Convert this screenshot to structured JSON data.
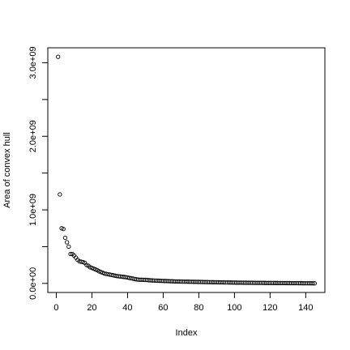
{
  "chart_data": {
    "type": "scatter",
    "xlabel": "Index",
    "ylabel": "Area of convex hull",
    "xlim": [
      -4.76,
      150.76
    ],
    "ylim": [
      -123200000,
      3203200000
    ],
    "xticks": [
      0,
      20,
      40,
      60,
      80,
      100,
      120,
      140
    ],
    "xtick_labels": [
      "0",
      "20",
      "40",
      "60",
      "80",
      "100",
      "120",
      "140"
    ],
    "yticks": [
      0,
      1000000000,
      2000000000,
      3000000000
    ],
    "ytick_labels": [
      "0.0e+00",
      "1.0e+09",
      "2.0e+09",
      "3.0e+09"
    ],
    "grid": false,
    "marker": "open-circle",
    "x": [
      1,
      2,
      3,
      4,
      5,
      6,
      7,
      8,
      9,
      10,
      11,
      12,
      13,
      14,
      15,
      16,
      17,
      18,
      19,
      20,
      21,
      22,
      23,
      24,
      25,
      26,
      27,
      28,
      29,
      30,
      31,
      32,
      33,
      34,
      35,
      36,
      37,
      38,
      39,
      40,
      41,
      42,
      43,
      44,
      45,
      46,
      47,
      48,
      49,
      50,
      51,
      52,
      53,
      54,
      55,
      56,
      57,
      58,
      59,
      60,
      61,
      62,
      63,
      64,
      65,
      66,
      67,
      68,
      69,
      70,
      71,
      72,
      73,
      74,
      75,
      76,
      77,
      78,
      79,
      80,
      81,
      82,
      83,
      84,
      85,
      86,
      87,
      88,
      89,
      90,
      91,
      92,
      93,
      94,
      95,
      96,
      97,
      98,
      99,
      100,
      101,
      102,
      103,
      104,
      105,
      106,
      107,
      108,
      109,
      110,
      111,
      112,
      113,
      114,
      115,
      116,
      117,
      118,
      119,
      120,
      121,
      122,
      123,
      124,
      125,
      126,
      127,
      128,
      129,
      130,
      131,
      132,
      133,
      134,
      135,
      136,
      137,
      138,
      139,
      140,
      141,
      142,
      143,
      144,
      145
    ],
    "y": [
      3080000000,
      1210000000,
      750000000,
      740000000,
      620000000,
      560000000,
      500000000,
      400000000,
      400000000,
      380000000,
      350000000,
      320000000,
      300000000,
      295000000,
      290000000,
      280000000,
      250000000,
      240000000,
      220000000,
      210000000,
      200000000,
      190000000,
      180000000,
      165000000,
      155000000,
      145000000,
      135000000,
      130000000,
      125000000,
      120000000,
      115000000,
      110000000,
      105000000,
      100000000,
      97000000,
      94000000,
      91000000,
      88000000,
      85000000,
      80000000,
      75000000,
      70000000,
      65000000,
      60000000,
      55000000,
      52000000,
      50000000,
      50000000,
      49000000,
      48000000,
      46000000,
      44000000,
      42000000,
      40000000,
      39000000,
      38000000,
      37000000,
      36000000,
      35000000,
      34000000,
      33000000,
      32000000,
      31000000,
      30000000,
      29000000,
      28000000,
      27000000,
      26500000,
      26000000,
      25500000,
      25000000,
      24500000,
      24000000,
      23500000,
      23000000,
      22500000,
      22000000,
      21500000,
      21000000,
      20500000,
      20000000,
      19500000,
      19000000,
      18500000,
      18000000,
      17500000,
      17000000,
      16500000,
      16000000,
      15500000,
      15000000,
      14600000,
      14200000,
      13800000,
      13400000,
      13000000,
      12600000,
      12200000,
      11800000,
      11400000,
      11000000,
      10700000,
      10400000,
      10100000,
      9800000,
      9500000,
      9200000,
      8900000,
      8600000,
      8300000,
      8000000,
      7800000,
      7600000,
      7400000,
      7200000,
      7000000,
      6800000,
      6600000,
      6400000,
      6200000,
      6000000,
      5800000,
      5600000,
      5400000,
      5200000,
      5000000,
      4800000,
      4600000,
      4400000,
      4200000,
      4000000,
      3800000,
      3600000,
      3400000,
      3200000,
      3000000,
      2800000,
      2600000,
      2400000,
      2200000,
      2000000,
      1800000,
      1600000,
      1400000,
      1200000
    ]
  }
}
